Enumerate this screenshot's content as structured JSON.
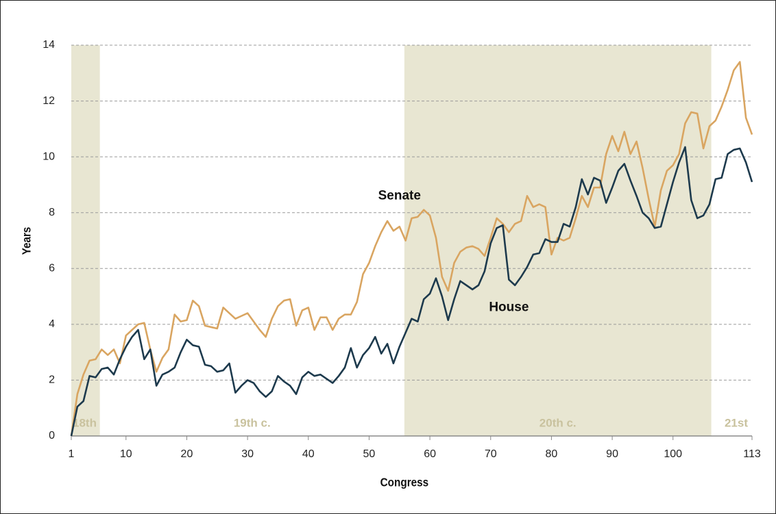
{
  "chart_data": {
    "type": "line",
    "xlabel": "Congress",
    "ylabel": "Years",
    "x": [
      1,
      2,
      3,
      4,
      5,
      6,
      7,
      8,
      9,
      10,
      11,
      12,
      13,
      14,
      15,
      16,
      17,
      18,
      19,
      20,
      21,
      22,
      23,
      24,
      25,
      26,
      27,
      28,
      29,
      30,
      31,
      32,
      33,
      34,
      35,
      36,
      37,
      38,
      39,
      40,
      41,
      42,
      43,
      44,
      45,
      46,
      47,
      48,
      49,
      50,
      51,
      52,
      53,
      54,
      55,
      56,
      57,
      58,
      59,
      60,
      61,
      62,
      63,
      64,
      65,
      66,
      67,
      68,
      69,
      70,
      71,
      72,
      73,
      74,
      75,
      76,
      77,
      78,
      79,
      80,
      81,
      82,
      83,
      84,
      85,
      86,
      87,
      88,
      89,
      90,
      91,
      92,
      93,
      94,
      95,
      96,
      97,
      98,
      99,
      100,
      101,
      102,
      103,
      104,
      105,
      106,
      107,
      108,
      109,
      110,
      111,
      112,
      113
    ],
    "series": [
      {
        "name": "Senate",
        "color": "#d9a561",
        "values": [
          0,
          1.5,
          2.2,
          2.7,
          2.75,
          3.1,
          2.9,
          3.1,
          2.6,
          3.6,
          3.8,
          4.0,
          4.05,
          3.1,
          2.3,
          2.8,
          3.1,
          4.35,
          4.1,
          4.15,
          4.85,
          4.65,
          3.95,
          3.9,
          3.85,
          4.6,
          4.4,
          4.2,
          4.3,
          4.4,
          4.1,
          3.8,
          3.55,
          4.2,
          4.65,
          4.85,
          4.9,
          3.95,
          4.5,
          4.6,
          3.8,
          4.25,
          4.25,
          3.8,
          4.2,
          4.35,
          4.35,
          4.8,
          5.8,
          6.2,
          6.8,
          7.3,
          7.7,
          7.35,
          7.5,
          7.0,
          7.8,
          7.85,
          8.1,
          7.9,
          7.1,
          5.7,
          5.2,
          6.2,
          6.6,
          6.75,
          6.8,
          6.7,
          6.45,
          7.1,
          7.8,
          7.6,
          7.3,
          7.6,
          7.7,
          8.6,
          8.2,
          8.3,
          8.2,
          6.5,
          7.1,
          7.0,
          7.1,
          7.8,
          8.6,
          8.2,
          8.9,
          8.9,
          10.1,
          10.75,
          10.2,
          10.9,
          10.1,
          10.55,
          9.6,
          8.5,
          7.5,
          8.8,
          9.5,
          9.7,
          10.1,
          11.2,
          11.6,
          11.55,
          10.3,
          11.1,
          11.3,
          11.8,
          12.4,
          13.1,
          13.4,
          11.4,
          10.8
        ]
      },
      {
        "name": "House",
        "color": "#1d3a4d",
        "values": [
          0,
          1.05,
          1.25,
          2.15,
          2.1,
          2.4,
          2.45,
          2.2,
          2.75,
          3.2,
          3.55,
          3.8,
          2.75,
          3.1,
          1.8,
          2.2,
          2.3,
          2.45,
          3.0,
          3.45,
          3.25,
          3.2,
          2.55,
          2.5,
          2.3,
          2.35,
          2.6,
          1.55,
          1.8,
          2.0,
          1.9,
          1.6,
          1.4,
          1.6,
          2.15,
          1.95,
          1.8,
          1.5,
          2.1,
          2.3,
          2.15,
          2.2,
          2.05,
          1.9,
          2.15,
          2.45,
          3.15,
          2.45,
          2.9,
          3.15,
          3.55,
          2.95,
          3.3,
          2.6,
          3.2,
          3.7,
          4.2,
          4.1,
          4.9,
          5.1,
          5.65,
          5.0,
          4.15,
          4.9,
          5.55,
          5.4,
          5.25,
          5.4,
          5.9,
          6.9,
          7.45,
          7.55,
          5.6,
          5.4,
          5.7,
          6.05,
          6.5,
          6.55,
          7.05,
          6.95,
          6.95,
          7.6,
          7.5,
          8.2,
          9.2,
          8.65,
          9.25,
          9.15,
          8.35,
          8.9,
          9.5,
          9.75,
          9.15,
          8.6,
          8.0,
          7.8,
          7.45,
          7.5,
          8.3,
          9.1,
          9.8,
          10.35,
          8.45,
          7.8,
          7.9,
          8.3,
          9.2,
          9.25,
          10.1,
          10.25,
          10.3,
          9.8,
          9.1
        ]
      }
    ],
    "eras": [
      {
        "label": "18th",
        "range": [
          1,
          5.7
        ],
        "shaded": true
      },
      {
        "label": "19th c.",
        "range": [
          5.7,
          55.8
        ],
        "shaded": false
      },
      {
        "label": "20th c.",
        "range": [
          55.8,
          106.3
        ],
        "shaded": true
      },
      {
        "label": "21st",
        "range": [
          106.3,
          113
        ],
        "shaded": false
      }
    ],
    "xlim": [
      1,
      113
    ],
    "xticks": [
      1,
      10,
      20,
      30,
      40,
      50,
      60,
      70,
      80,
      90,
      100,
      113
    ],
    "ylim": [
      0,
      14
    ],
    "yticks": [
      0,
      2,
      4,
      6,
      8,
      10,
      12,
      14
    ],
    "grid": true
  }
}
